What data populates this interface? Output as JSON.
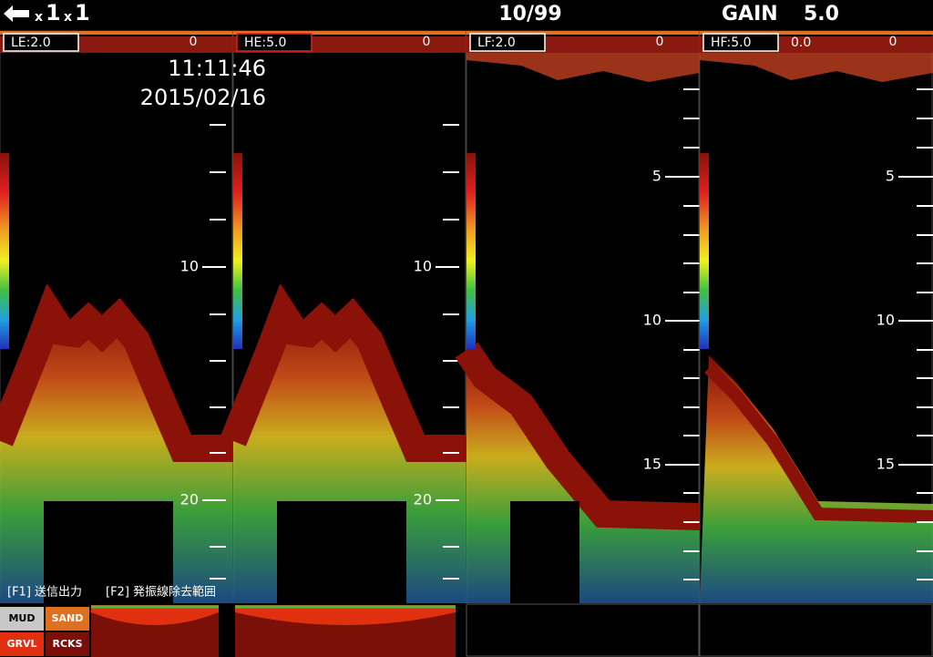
{
  "header": {
    "zoom": [
      {
        "prefix": "x",
        "value": "1"
      },
      {
        "prefix": "x",
        "value": "1"
      }
    ],
    "page": "10/99",
    "gain_label": "GAIN",
    "gain_value": "5.0"
  },
  "clock": {
    "time": "11:11:46",
    "date": "2015/02/16"
  },
  "panels": [
    {
      "label": "LE:2.0",
      "zero": "0",
      "depth_labels": [
        "10",
        "20"
      ]
    },
    {
      "label": "HE:5.0",
      "zero": "0",
      "depth_labels": [
        "10",
        "20"
      ]
    },
    {
      "label": "LF:2.0",
      "zero": "0",
      "depth_labels": [
        "5",
        "10",
        "15"
      ]
    },
    {
      "label": "HF:5.0",
      "extra": "0.0",
      "zero": "0",
      "depth_labels": [
        "5",
        "10",
        "15"
      ]
    }
  ],
  "footer": {
    "f1": "[F1] 送信出力",
    "f2": "[F2] 発振線除去範囲"
  },
  "bottom_types": [
    "MUD",
    "SAND",
    "GRVL",
    "RCKS"
  ]
}
